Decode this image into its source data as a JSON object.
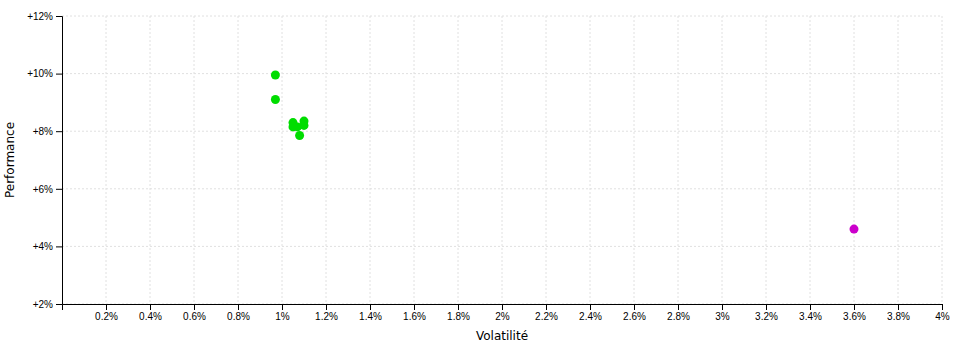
{
  "chart_data": {
    "type": "scatter",
    "xlabel": "Volatilité",
    "ylabel": "Performance",
    "xlim": [
      0.0,
      0.04
    ],
    "ylim": [
      0.02,
      0.12
    ],
    "xticks": [
      {
        "value": 0.002,
        "label": "0.2%"
      },
      {
        "value": 0.004,
        "label": "0.4%"
      },
      {
        "value": 0.006,
        "label": "0.6%"
      },
      {
        "value": 0.008,
        "label": "0.8%"
      },
      {
        "value": 0.01,
        "label": "1%"
      },
      {
        "value": 0.012,
        "label": "1.2%"
      },
      {
        "value": 0.014,
        "label": "1.4%"
      },
      {
        "value": 0.016,
        "label": "1.6%"
      },
      {
        "value": 0.018,
        "label": "1.8%"
      },
      {
        "value": 0.02,
        "label": "2%"
      },
      {
        "value": 0.022,
        "label": "2.2%"
      },
      {
        "value": 0.024,
        "label": "2.4%"
      },
      {
        "value": 0.026,
        "label": "2.6%"
      },
      {
        "value": 0.028,
        "label": "2.8%"
      },
      {
        "value": 0.03,
        "label": "3%"
      },
      {
        "value": 0.032,
        "label": "3.2%"
      },
      {
        "value": 0.034,
        "label": "3.4%"
      },
      {
        "value": 0.036,
        "label": "3.6%"
      },
      {
        "value": 0.038,
        "label": "3.8%"
      },
      {
        "value": 0.04,
        "label": "4%"
      }
    ],
    "yticks": [
      {
        "value": 0.02,
        "label": "+2%"
      },
      {
        "value": 0.04,
        "label": "+4%"
      },
      {
        "value": 0.06,
        "label": "+6%"
      },
      {
        "value": 0.08,
        "label": "+8%"
      },
      {
        "value": 0.1,
        "label": "+10%"
      },
      {
        "value": 0.12,
        "label": "+12%"
      }
    ],
    "grid": true,
    "series": [
      {
        "color": "#00dd00",
        "x": [
          0.0097,
          0.0097,
          0.0105,
          0.0105,
          0.0107,
          0.011,
          0.011,
          0.0108
        ],
        "values": [
          0.0995,
          0.091,
          0.083,
          0.0815,
          0.0815,
          0.0835,
          0.082,
          0.0785
        ]
      },
      {
        "color": "#cc00cc",
        "x": [
          0.036
        ],
        "values": [
          0.046
        ]
      }
    ]
  }
}
